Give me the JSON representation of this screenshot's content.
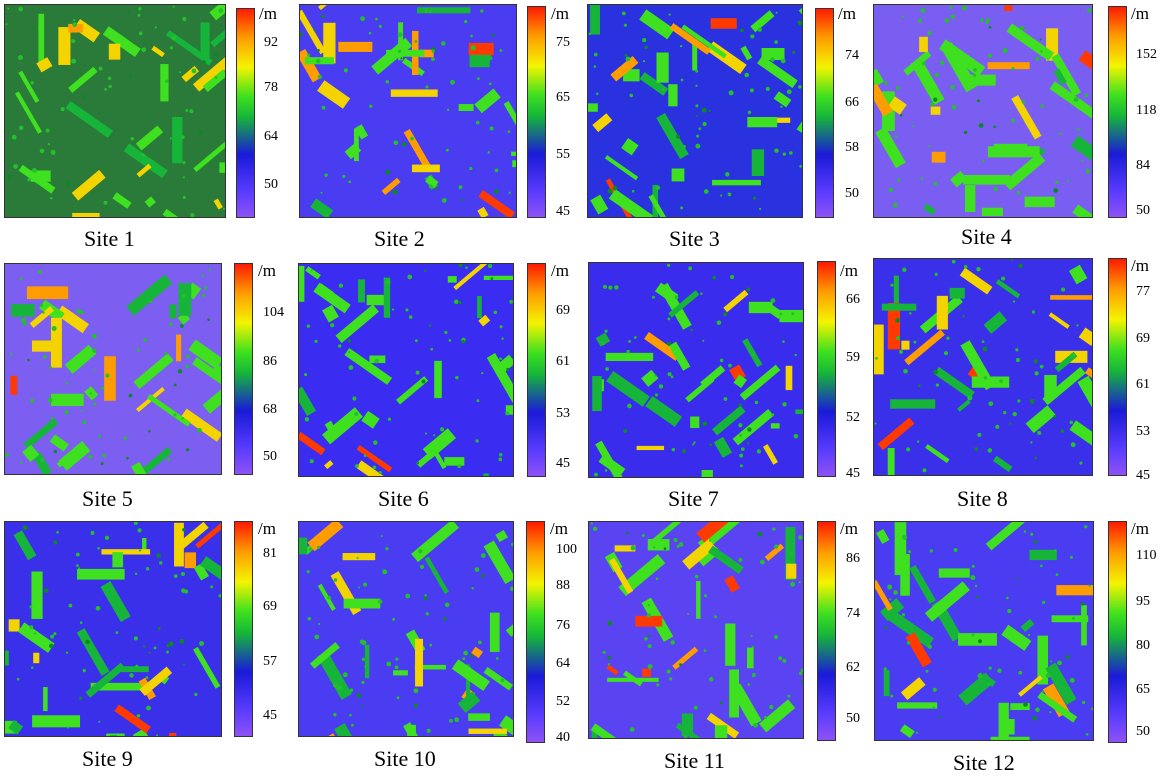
{
  "unit_label": "/m",
  "sites": [
    {
      "caption": "Site 1",
      "ticks": [
        "92",
        "78",
        "64",
        "50"
      ],
      "base": "#2a7a3a"
    },
    {
      "caption": "Site 2",
      "ticks": [
        "75",
        "65",
        "55",
        "45"
      ],
      "base": "#4a3cf0"
    },
    {
      "caption": "Site 3",
      "ticks": [
        "74",
        "66",
        "58",
        "50"
      ],
      "base": "#2a32e0"
    },
    {
      "caption": "Site 4",
      "ticks": [
        "152",
        "118",
        "84",
        "50"
      ],
      "base": "#7a5ef2"
    },
    {
      "caption": "Site 5",
      "ticks": [
        "104",
        "86",
        "68",
        "50"
      ],
      "base": "#7c5ef0"
    },
    {
      "caption": "Site 6",
      "ticks": [
        "69",
        "61",
        "53",
        "45"
      ],
      "base": "#3a2cf0"
    },
    {
      "caption": "Site 7",
      "ticks": [
        "66",
        "59",
        "52",
        "45"
      ],
      "base": "#3a2cec"
    },
    {
      "caption": "Site 8",
      "ticks": [
        "77",
        "69",
        "61",
        "53",
        "45"
      ],
      "base": "#3a30ea"
    },
    {
      "caption": "Site 9",
      "ticks": [
        "81",
        "69",
        "57",
        "45"
      ],
      "base": "#3a30ea"
    },
    {
      "caption": "Site 10",
      "ticks": [
        "100",
        "88",
        "76",
        "64",
        "52",
        "40"
      ],
      "base": "#4a3cf0"
    },
    {
      "caption": "Site 11",
      "ticks": [
        "86",
        "74",
        "62",
        "50"
      ],
      "base": "#5a44f2"
    },
    {
      "caption": "Site 12",
      "ticks": [
        "110",
        "95",
        "80",
        "65",
        "50"
      ],
      "base": "#4a3cf0"
    }
  ]
}
